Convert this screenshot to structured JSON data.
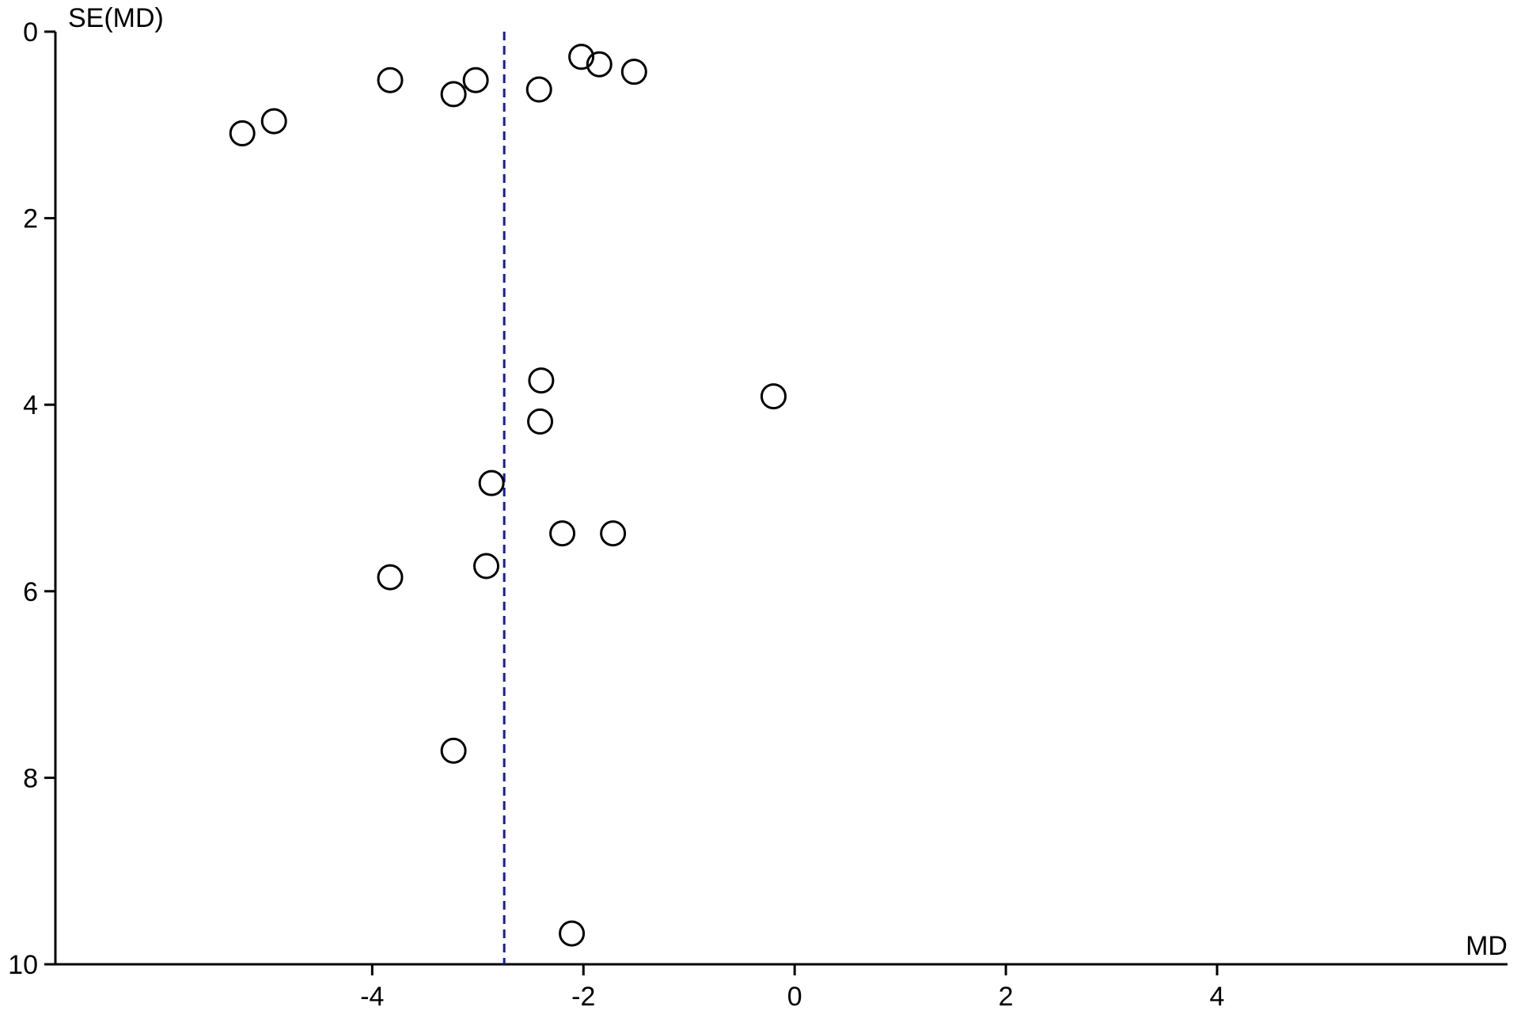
{
  "chart_data": {
    "type": "scatter",
    "subtype": "funnel plot",
    "xlabel": "MD",
    "ylabel": "SE(MD)",
    "xlim": [
      -7,
      6.75
    ],
    "ylim": [
      0,
      10
    ],
    "y_inverted": true,
    "x_ticks": [
      -4,
      -2,
      0,
      2,
      4
    ],
    "y_ticks": [
      0,
      2,
      4,
      6,
      8,
      10
    ],
    "reference_line": {
      "x": -2.75,
      "style": "dashed",
      "color": "#1a1aa8"
    },
    "marker": {
      "shape": "open-circle",
      "color": "#000000"
    },
    "points": [
      {
        "x": -2.02,
        "y": 0.27
      },
      {
        "x": -1.85,
        "y": 0.35
      },
      {
        "x": -1.52,
        "y": 0.43
      },
      {
        "x": -3.83,
        "y": 0.52
      },
      {
        "x": -3.02,
        "y": 0.52
      },
      {
        "x": -3.23,
        "y": 0.67
      },
      {
        "x": -2.42,
        "y": 0.62
      },
      {
        "x": -4.93,
        "y": 0.96
      },
      {
        "x": -5.23,
        "y": 1.09
      },
      {
        "x": -2.4,
        "y": 3.74
      },
      {
        "x": -0.2,
        "y": 3.91
      },
      {
        "x": -2.41,
        "y": 4.18
      },
      {
        "x": -2.87,
        "y": 4.84
      },
      {
        "x": -2.2,
        "y": 5.38
      },
      {
        "x": -1.72,
        "y": 5.38
      },
      {
        "x": -2.92,
        "y": 5.73
      },
      {
        "x": -3.83,
        "y": 5.85
      },
      {
        "x": -3.23,
        "y": 7.71
      },
      {
        "x": -2.11,
        "y": 9.67
      }
    ]
  }
}
